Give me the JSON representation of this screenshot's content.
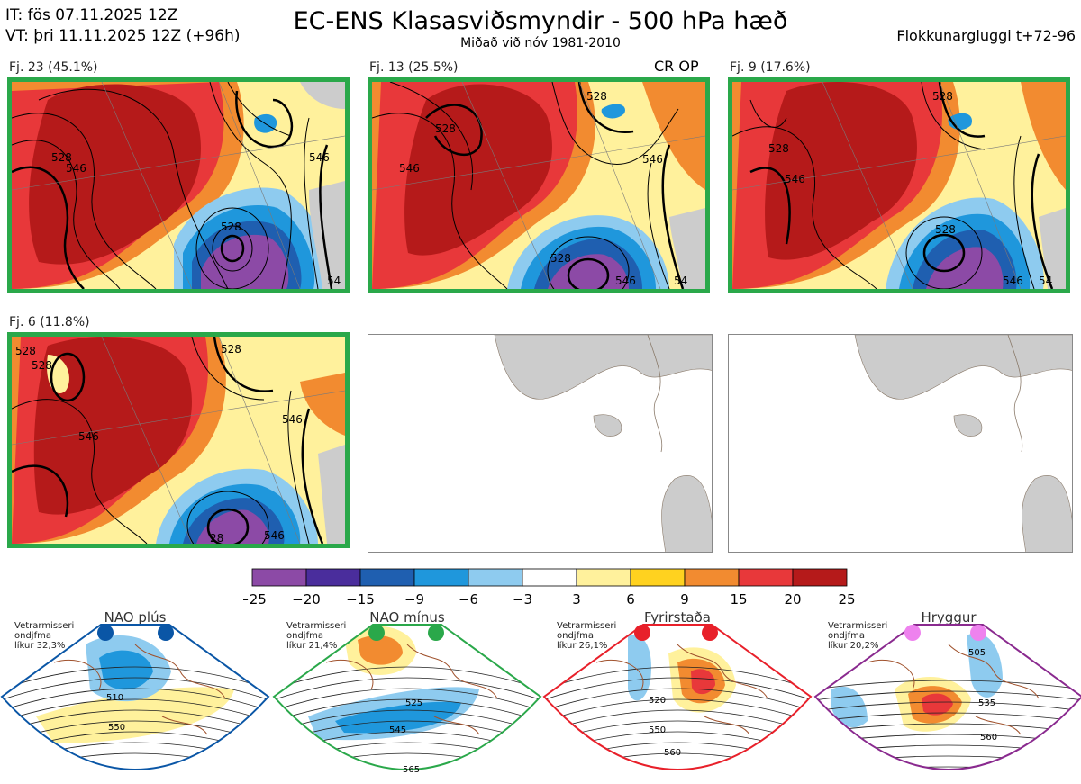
{
  "header": {
    "it_line": "IT: fös 07.11.2025 12Z",
    "vt_line": "VT: þri 11.11.2025 12Z  (+96h)",
    "title": "EC-ENS Klasasviðsmyndir - 500 hPa hæð",
    "subtitle": "Miðað við nóv 1981-2010",
    "window": "Flokkunargluggi t+72-96"
  },
  "panels": [
    {
      "label": "Fj. 23 (45.1%)",
      "contours": [
        "528",
        "546",
        "528",
        "546",
        "54"
      ]
    },
    {
      "label": "Fj. 13 (25.5%)",
      "extra": "CR OP",
      "contours": [
        "528",
        "528",
        "546",
        "546",
        "528",
        "546",
        "54"
      ]
    },
    {
      "label": "Fj. 9 (17.6%)",
      "contours": [
        "528",
        "528",
        "546",
        "528",
        "546",
        "54"
      ]
    },
    {
      "label": "Fj. 6 (11.8%)",
      "contours": [
        "528",
        "528",
        "528",
        "546",
        "546",
        "28",
        "546"
      ]
    }
  ],
  "colorbar": {
    "ticks": [
      "−25",
      "−20",
      "−15",
      "−9",
      "−6",
      "−3",
      "3",
      "6",
      "9",
      "15",
      "20",
      "25"
    ],
    "colors": [
      "#8c4aa6",
      "#4a2d9c",
      "#1f5fb0",
      "#1f97dc",
      "#8ecbef",
      "#ffffff",
      "#fff19c",
      "#ffd21f",
      "#f28b30",
      "#e8383a",
      "#b51a1a"
    ]
  },
  "regimes": [
    {
      "title": "NAO plús",
      "note": [
        "Vetrarmisseri",
        "ondjfma",
        "líkur 32,3%"
      ],
      "color": "#0a56a6",
      "contours": [
        "510",
        "550"
      ]
    },
    {
      "title": "NAO mínus",
      "note": [
        "Vetrarmisseri",
        "ondjfma",
        "líkur 21,4%"
      ],
      "color": "#2aa84a",
      "contours": [
        "525",
        "545",
        "565"
      ]
    },
    {
      "title": "Fyrirstaða",
      "note": [
        "Vetrarmisseri",
        "ondjfma",
        "líkur 26,1%"
      ],
      "color": "#e8202a",
      "contours": [
        "520",
        "550",
        "560"
      ]
    },
    {
      "title": "Hryggur",
      "note": [
        "Vetrarmisseri",
        "ondjfma",
        "líkur 20,2%"
      ],
      "color": "#8a2a8f",
      "contours": [
        "505",
        "535",
        "560"
      ]
    }
  ]
}
